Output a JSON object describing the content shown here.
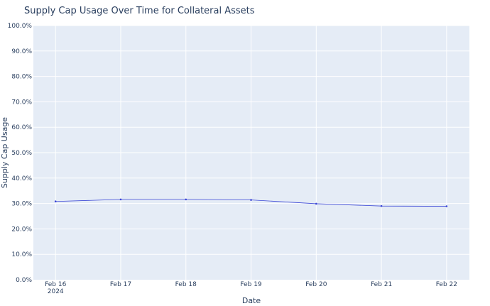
{
  "chart_data": {
    "type": "line",
    "title": "Supply Cap Usage Over Time for Collateral Assets",
    "xlabel": "Date",
    "ylabel": "Supply Cap Usage",
    "x": [
      "2024-02-16",
      "2024-02-17",
      "2024-02-18",
      "2024-02-19",
      "2024-02-20",
      "2024-02-21",
      "2024-02-22"
    ],
    "x_tick_labels": [
      "Feb 16",
      "Feb 17",
      "Feb 18",
      "Feb 19",
      "Feb 20",
      "Feb 21",
      "Feb 22"
    ],
    "x_year_label": "2024",
    "series": [
      {
        "values": [
          0.308,
          0.316,
          0.316,
          0.314,
          0.299,
          0.29,
          0.289
        ]
      }
    ],
    "ylim": [
      0,
      1
    ],
    "y_tick_labels": [
      "0.0%",
      "10.0%",
      "20.0%",
      "30.0%",
      "40.0%",
      "50.0%",
      "60.0%",
      "70.0%",
      "80.0%",
      "90.0%",
      "100.0%"
    ],
    "grid": true,
    "colors": {
      "line": "#3b47d6",
      "plot_bg": "#e5ecf6",
      "grid": "#ffffff",
      "text": "#2a3f5f"
    }
  }
}
